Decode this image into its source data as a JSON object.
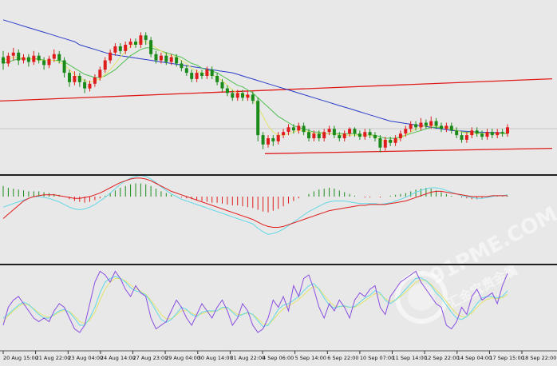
{
  "watermark": {
    "brand": "91PME.COM",
    "subtitle": "汇金宝贵金属"
  },
  "colors": {
    "background": "#e8e8e8",
    "bull": "#e01b1b",
    "bear": "#1a8a1a",
    "ma_slow": "#2a3cc8",
    "ma_fast": "#4fc04f",
    "ma_yellow": "#e4e46a",
    "channel": "#e01b1b",
    "macd_signal": "#e01b1b",
    "macd_line": "#62d8e6",
    "macd_hist": "#1a8a1a",
    "stoch_k": "#8a4ee0",
    "stoch_d": "#62d8e6",
    "stoch_slow": "#e4e46a",
    "divider": "#202020"
  },
  "chart_data": {
    "type": "candlestick",
    "grid": false,
    "price_axis_shown": false,
    "x_tick_labels": [
      "20 Aug 15:00",
      "21 Aug 22:00",
      "23 Aug 04:00",
      "24 Aug 14:00",
      "27 Aug 23:00",
      "29 Aug 04:00",
      "30 Aug 14:00",
      "31 Aug 22:00",
      "4 Sep 06:00",
      "5 Sep 14:00",
      "6 Sep 22:00",
      "10 Sep 07:00",
      "11 Sep 14:00",
      "12 Sep 22:00",
      "14 Sep 04:00",
      "17 Sep 15:00",
      "18 Sep 22:00"
    ],
    "candles": [
      [
        72,
        68,
        76,
        64
      ],
      [
        68,
        73,
        75,
        66
      ],
      [
        73,
        75,
        78,
        70
      ],
      [
        75,
        70,
        77,
        67
      ],
      [
        70,
        72,
        74,
        68
      ],
      [
        72,
        69,
        74,
        66
      ],
      [
        69,
        73,
        76,
        67
      ],
      [
        73,
        70,
        75,
        68
      ],
      [
        70,
        67,
        72,
        64
      ],
      [
        67,
        71,
        73,
        65
      ],
      [
        71,
        74,
        77,
        69
      ],
      [
        74,
        70,
        76,
        68
      ],
      [
        70,
        62,
        72,
        59
      ],
      [
        62,
        56,
        64,
        53
      ],
      [
        56,
        60,
        63,
        54
      ],
      [
        60,
        56,
        62,
        53
      ],
      [
        56,
        52,
        58,
        49
      ],
      [
        52,
        55,
        57,
        50
      ],
      [
        55,
        59,
        61,
        53
      ],
      [
        59,
        64,
        66,
        57
      ],
      [
        64,
        70,
        72,
        62
      ],
      [
        70,
        75,
        77,
        68
      ],
      [
        75,
        79,
        81,
        73
      ],
      [
        79,
        76,
        81,
        74
      ],
      [
        76,
        80,
        82,
        74
      ],
      [
        80,
        82,
        84,
        78
      ],
      [
        82,
        80,
        84,
        78
      ],
      [
        80,
        86,
        88,
        78
      ],
      [
        86,
        83,
        88,
        80
      ],
      [
        83,
        74,
        85,
        72
      ],
      [
        74,
        70,
        76,
        68
      ],
      [
        70,
        73,
        75,
        68
      ],
      [
        73,
        69,
        75,
        67
      ],
      [
        69,
        72,
        74,
        67
      ],
      [
        72,
        68,
        74,
        66
      ],
      [
        68,
        65,
        70,
        63
      ],
      [
        65,
        62,
        67,
        60
      ],
      [
        62,
        58,
        64,
        56
      ],
      [
        58,
        62,
        64,
        56
      ],
      [
        62,
        60,
        64,
        58
      ],
      [
        60,
        64,
        66,
        58
      ],
      [
        64,
        60,
        66,
        58
      ],
      [
        60,
        56,
        62,
        54
      ],
      [
        56,
        52,
        58,
        50
      ],
      [
        52,
        49,
        54,
        47
      ],
      [
        49,
        46,
        51,
        44
      ],
      [
        46,
        49,
        51,
        44
      ],
      [
        49,
        46,
        51,
        44
      ],
      [
        46,
        48,
        50,
        44
      ],
      [
        48,
        44,
        50,
        42
      ],
      [
        44,
        22,
        46,
        18
      ],
      [
        22,
        16,
        24,
        13
      ],
      [
        16,
        20,
        22,
        14
      ],
      [
        20,
        18,
        22,
        15
      ],
      [
        18,
        22,
        24,
        16
      ],
      [
        22,
        24,
        26,
        20
      ],
      [
        24,
        27,
        29,
        22
      ],
      [
        27,
        25,
        29,
        23
      ],
      [
        25,
        28,
        30,
        23
      ],
      [
        28,
        24,
        30,
        22
      ],
      [
        24,
        20,
        26,
        18
      ],
      [
        20,
        23,
        25,
        18
      ],
      [
        23,
        20,
        25,
        18
      ],
      [
        20,
        24,
        26,
        18
      ],
      [
        24,
        26,
        28,
        22
      ],
      [
        26,
        22,
        28,
        20
      ],
      [
        22,
        20,
        24,
        18
      ],
      [
        20,
        23,
        25,
        18
      ],
      [
        23,
        26,
        27,
        21
      ],
      [
        26,
        23,
        27,
        21
      ],
      [
        23,
        21,
        25,
        19
      ],
      [
        21,
        24,
        26,
        19
      ],
      [
        24,
        22,
        26,
        20
      ],
      [
        22,
        20,
        24,
        18
      ],
      [
        20,
        14,
        22,
        11
      ],
      [
        14,
        19,
        21,
        12
      ],
      [
        19,
        17,
        21,
        15
      ],
      [
        17,
        20,
        22,
        15
      ],
      [
        20,
        23,
        25,
        18
      ],
      [
        23,
        26,
        28,
        21
      ],
      [
        26,
        29,
        31,
        24
      ],
      [
        29,
        27,
        31,
        25
      ],
      [
        27,
        30,
        33,
        25
      ],
      [
        30,
        28,
        32,
        26
      ],
      [
        28,
        31,
        34,
        26
      ],
      [
        31,
        28,
        33,
        26
      ],
      [
        28,
        26,
        30,
        24
      ],
      [
        26,
        28,
        30,
        24
      ],
      [
        28,
        25,
        30,
        23
      ],
      [
        25,
        22,
        27,
        20
      ],
      [
        22,
        19,
        24,
        17
      ],
      [
        19,
        22,
        24,
        17
      ],
      [
        22,
        25,
        27,
        20
      ],
      [
        25,
        23,
        27,
        21
      ],
      [
        23,
        21,
        25,
        19
      ],
      [
        21,
        24,
        26,
        19
      ],
      [
        24,
        22,
        26,
        20
      ],
      [
        22,
        24,
        26,
        20
      ],
      [
        24,
        23,
        26,
        21
      ],
      [
        23,
        27,
        29,
        21
      ]
    ],
    "ma_slow": [
      96,
      95,
      94,
      93,
      92,
      91,
      90,
      89,
      88,
      87,
      86,
      85,
      84,
      83,
      82,
      80,
      79,
      78,
      77,
      76,
      75,
      74,
      73.5,
      73,
      72.5,
      72,
      71.5,
      71,
      70.5,
      70,
      69.5,
      69,
      68.5,
      68,
      67.5,
      67,
      66.5,
      66,
      65.5,
      65,
      64.5,
      64,
      63.5,
      63,
      62.5,
      62,
      61,
      60,
      59,
      58,
      57,
      56,
      55,
      54,
      53,
      52,
      51,
      50,
      49,
      48,
      47,
      46,
      45,
      44,
      43,
      42,
      41,
      40,
      39,
      38,
      37,
      36,
      35,
      34,
      33,
      32,
      31,
      30.5,
      30,
      29.5,
      29,
      28.5,
      28,
      27.5,
      27,
      26.5,
      26,
      25.5,
      25,
      24.8,
      24.6,
      24.4,
      24.2,
      24,
      23.9,
      23.8,
      23.7,
      23.6,
      23.5,
      23.5
    ],
    "ma_fast": [
      68,
      69,
      70,
      71,
      71,
      71,
      71,
      71,
      70,
      70,
      70,
      70,
      69,
      67,
      65,
      63,
      61,
      60,
      59,
      59,
      60,
      62,
      64,
      67,
      70,
      73,
      75,
      77,
      78,
      78,
      77,
      76,
      75,
      74,
      73,
      72,
      70,
      68,
      67,
      65,
      64,
      63,
      62,
      60,
      58,
      56,
      54,
      53,
      51,
      49,
      46,
      43,
      40,
      37,
      34,
      32,
      30,
      28,
      27,
      26,
      25,
      24,
      24,
      23,
      23,
      23,
      23,
      23,
      23,
      23,
      22,
      22,
      22,
      22,
      21,
      20,
      20,
      20,
      21,
      22,
      23,
      24,
      25,
      26,
      27,
      27,
      27,
      27,
      26,
      25,
      24,
      24,
      24,
      24,
      23,
      23,
      23,
      23,
      23,
      23
    ],
    "ma_yellow": [
      70,
      71,
      72,
      72,
      71,
      71,
      71,
      70,
      70,
      70,
      70,
      69,
      67,
      64,
      61,
      59,
      57,
      56,
      57,
      58,
      61,
      64,
      68,
      72,
      76,
      79,
      81,
      82,
      82,
      80,
      78,
      76,
      74,
      73,
      72,
      70,
      68,
      65,
      63,
      62,
      61,
      61,
      59,
      57,
      54,
      51,
      49,
      48,
      47,
      46,
      40,
      34,
      28,
      24,
      22,
      22,
      23,
      24,
      25,
      25,
      24,
      23,
      23,
      23,
      23,
      23,
      22,
      22,
      22,
      22,
      22,
      22,
      22,
      21,
      19,
      18,
      18,
      18,
      20,
      22,
      24,
      26,
      27,
      28,
      28,
      28,
      27,
      27,
      26,
      25,
      24,
      23,
      23,
      23,
      23,
      23,
      23,
      23,
      23,
      24
    ],
    "channel_top": {
      "from": [
        0,
        44
      ],
      "to": [
        99,
        57
      ]
    },
    "channel_bottom": {
      "from": [
        50,
        10
      ],
      "to": [
        99,
        13
      ]
    },
    "macd_hist": [
      12,
      10,
      9,
      8,
      7,
      6,
      6,
      6,
      5,
      4,
      3,
      2,
      0,
      -3,
      -5,
      -6,
      -7,
      -6,
      -4,
      -2,
      1,
      4,
      7,
      10,
      12,
      14,
      15,
      15,
      14,
      12,
      9,
      6,
      4,
      2,
      0,
      -1,
      -2,
      -3,
      -4,
      -5,
      -6,
      -7,
      -7,
      -8,
      -9,
      -10,
      -10,
      -11,
      -12,
      -13,
      -15,
      -17,
      -18,
      -16,
      -14,
      -11,
      -8,
      -5,
      -2,
      0,
      3,
      6,
      8,
      9,
      10,
      9,
      7,
      5,
      3,
      1,
      0,
      -1,
      -1,
      0,
      -1,
      0,
      1,
      2,
      3,
      4,
      6,
      8,
      9,
      10,
      9,
      7,
      5,
      3,
      1,
      0,
      -1,
      -2,
      -3,
      -3,
      -2,
      -1,
      0,
      1,
      1,
      1
    ],
    "macd_signal": [
      -25,
      -20,
      -15,
      -10,
      -5,
      -2,
      0,
      1,
      2,
      2,
      2,
      1,
      0,
      -1,
      -2,
      -2,
      -1,
      0,
      2,
      4,
      7,
      10,
      13,
      16,
      18,
      20,
      21,
      21,
      20,
      18,
      15,
      12,
      9,
      6,
      4,
      2,
      0,
      -2,
      -4,
      -6,
      -8,
      -10,
      -12,
      -14,
      -16,
      -18,
      -20,
      -22,
      -24,
      -26,
      -29,
      -32,
      -34,
      -35,
      -35,
      -34,
      -32,
      -30,
      -28,
      -26,
      -24,
      -22,
      -20,
      -18,
      -16,
      -15,
      -14,
      -13,
      -12,
      -11,
      -10,
      -10,
      -9,
      -9,
      -9,
      -9,
      -8,
      -7,
      -6,
      -5,
      -3,
      -1,
      1,
      3,
      5,
      6,
      6,
      5,
      4,
      3,
      2,
      1,
      0,
      0,
      0,
      0,
      1,
      1,
      1,
      1
    ],
    "macd_line": [
      -12,
      -10,
      -8,
      -6,
      -4,
      -2,
      0,
      0,
      -1,
      -2,
      -4,
      -6,
      -9,
      -12,
      -14,
      -15,
      -14,
      -12,
      -9,
      -5,
      -1,
      4,
      9,
      14,
      18,
      21,
      23,
      24,
      23,
      20,
      16,
      11,
      7,
      3,
      0,
      -3,
      -5,
      -7,
      -9,
      -11,
      -13,
      -15,
      -17,
      -19,
      -21,
      -23,
      -25,
      -27,
      -29,
      -31,
      -36,
      -40,
      -43,
      -42,
      -40,
      -37,
      -33,
      -29,
      -25,
      -21,
      -17,
      -14,
      -11,
      -8,
      -6,
      -5,
      -5,
      -5,
      -6,
      -7,
      -8,
      -8,
      -8,
      -8,
      -9,
      -8,
      -7,
      -5,
      -3,
      -1,
      2,
      5,
      7,
      9,
      10,
      10,
      9,
      7,
      5,
      3,
      1,
      0,
      -1,
      -2,
      -2,
      -1,
      0,
      1,
      1,
      2
    ],
    "stoch_k": [
      20,
      45,
      55,
      60,
      50,
      40,
      30,
      25,
      30,
      25,
      40,
      50,
      45,
      30,
      15,
      10,
      20,
      50,
      80,
      95,
      90,
      80,
      95,
      85,
      70,
      60,
      75,
      65,
      60,
      30,
      15,
      20,
      25,
      40,
      55,
      45,
      30,
      20,
      35,
      50,
      40,
      30,
      45,
      55,
      40,
      20,
      30,
      50,
      40,
      20,
      10,
      15,
      30,
      55,
      45,
      60,
      40,
      75,
      60,
      85,
      90,
      70,
      45,
      30,
      50,
      40,
      55,
      45,
      30,
      55,
      65,
      60,
      70,
      75,
      45,
      35,
      60,
      70,
      80,
      85,
      90,
      95,
      80,
      70,
      60,
      50,
      45,
      20,
      15,
      25,
      45,
      35,
      60,
      70,
      55,
      60,
      65,
      50,
      75,
      92
    ],
    "stoch_d": [
      30,
      35,
      42,
      48,
      52,
      49,
      42,
      35,
      30,
      30,
      35,
      40,
      42,
      38,
      30,
      20,
      20,
      30,
      45,
      65,
      80,
      85,
      88,
      85,
      80,
      72,
      68,
      66,
      62,
      52,
      40,
      28,
      24,
      28,
      36,
      45,
      42,
      35,
      32,
      38,
      40,
      40,
      40,
      45,
      45,
      38,
      32,
      35,
      38,
      35,
      26,
      18,
      20,
      30,
      42,
      48,
      50,
      55,
      60,
      68,
      75,
      78,
      70,
      58,
      48,
      44,
      46,
      47,
      45,
      46,
      52,
      58,
      62,
      68,
      65,
      55,
      50,
      55,
      62,
      70,
      78,
      85,
      86,
      82,
      75,
      65,
      58,
      48,
      38,
      30,
      28,
      32,
      40,
      50,
      58,
      60,
      60,
      58,
      60,
      68
    ],
    "stoch_slow": [
      25,
      33,
      40,
      46,
      50,
      48,
      43,
      37,
      33,
      31,
      34,
      38,
      41,
      39,
      33,
      25,
      22,
      27,
      38,
      55,
      70,
      80,
      85,
      85,
      82,
      76,
      71,
      67,
      63,
      55,
      45,
      35,
      29,
      29,
      34,
      40,
      41,
      37,
      34,
      36,
      38,
      39,
      40,
      43,
      44,
      40,
      35,
      35,
      37,
      35,
      29,
      22,
      21,
      27,
      36,
      43,
      47,
      51,
      56,
      62,
      69,
      74,
      71,
      62,
      53,
      47,
      46,
      46,
      45,
      45,
      49,
      54,
      59,
      64,
      63,
      57,
      53,
      55,
      60,
      66,
      73,
      80,
      83,
      82,
      77,
      69,
      62,
      53,
      44,
      36,
      32,
      32,
      37,
      45,
      52,
      56,
      58,
      57,
      58,
      63
    ]
  }
}
